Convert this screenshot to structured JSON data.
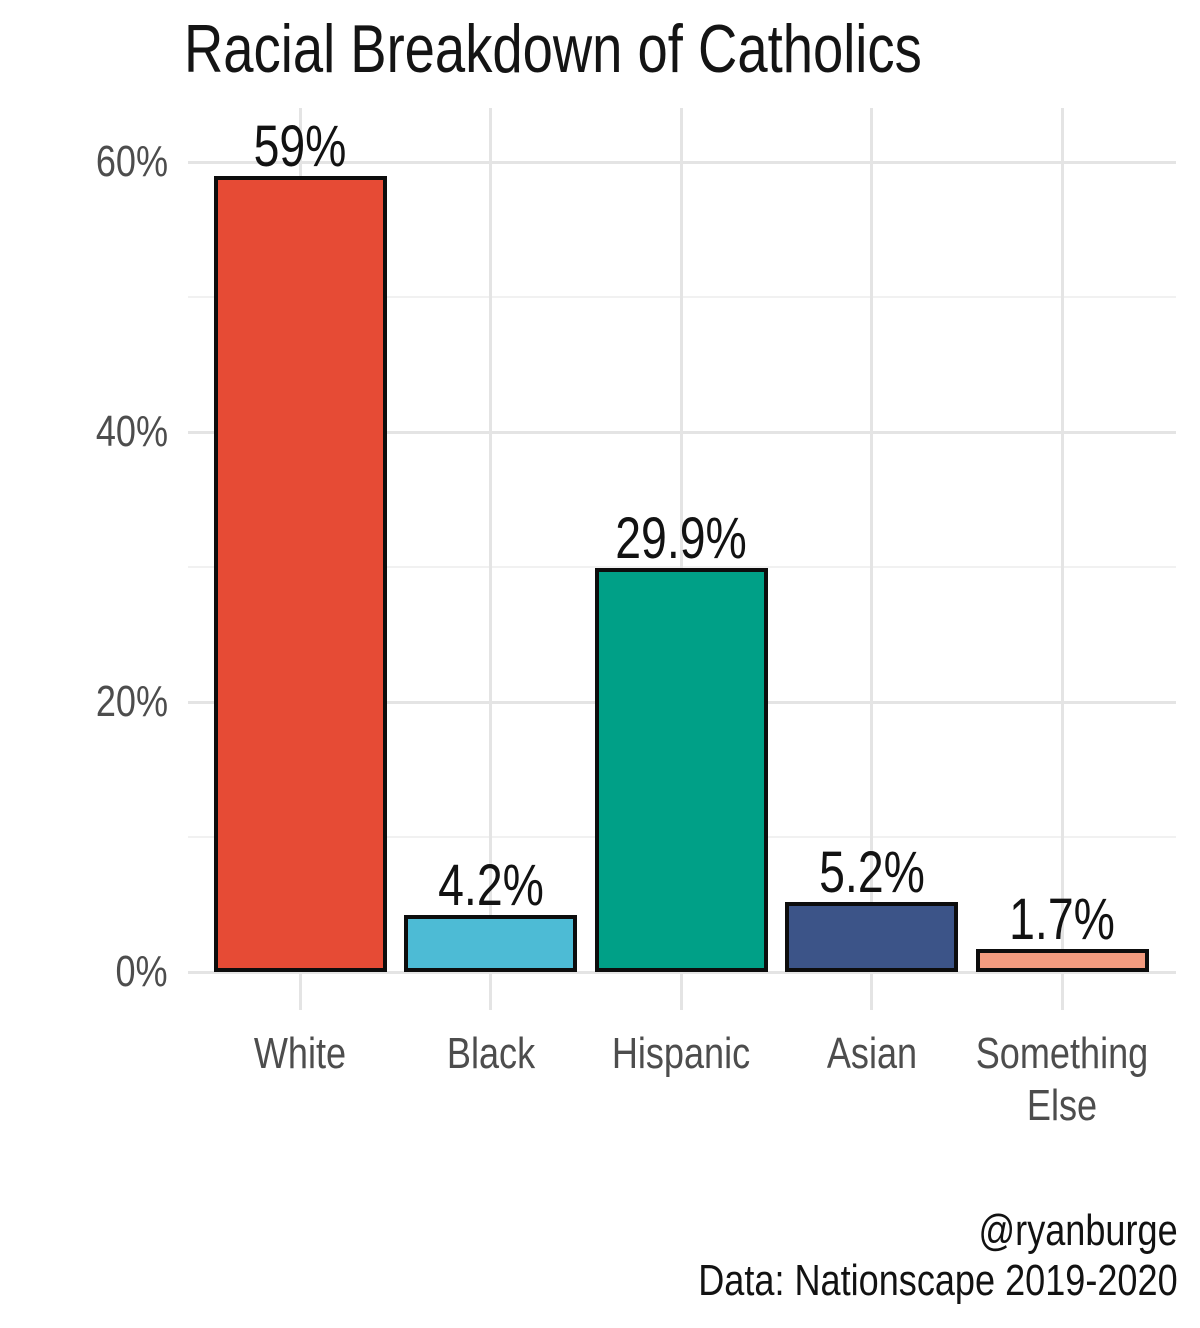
{
  "chart": {
    "title": "Racial Breakdown of Catholics"
  },
  "caption": {
    "line1": "@ryanburge",
    "line2": "Data: Nationscape 2019-2020"
  },
  "chart_data": {
    "type": "bar",
    "title": "Racial Breakdown of Catholics",
    "categories": [
      "White",
      "Black",
      "Hispanic",
      "Asian",
      "Something Else"
    ],
    "values": [
      59,
      4.2,
      29.9,
      5.2,
      1.7
    ],
    "value_labels": [
      "59%",
      "4.2%",
      "29.9%",
      "5.2%",
      "1.7%"
    ],
    "x_tick_display": [
      "White",
      "Black",
      "Hispanic",
      "Asian",
      "Something\nElse"
    ],
    "bar_colors": [
      "#E64B35",
      "#4DBBD5",
      "#00A087",
      "#3C5488",
      "#F39B7F"
    ],
    "bar_border_color": "#0D0D0D",
    "xlabel": "",
    "ylabel": "",
    "ylim": [
      0,
      60
    ],
    "y_ticks": [
      0,
      20,
      40,
      60
    ],
    "y_tick_labels": [
      "0%",
      "20%",
      "40%",
      "60%"
    ],
    "y_minor_ticks": [
      10,
      30,
      50
    ],
    "grid": "on",
    "legend": "none",
    "caption": [
      "@ryanburge",
      "Data: Nationscape 2019-2020"
    ],
    "colors": {
      "grid_major": "#E4E4E4",
      "grid_minor": "#F1F1F1",
      "axis_text": "#4D4D4D",
      "text": "#121212",
      "background": "#FFFFFF"
    }
  }
}
